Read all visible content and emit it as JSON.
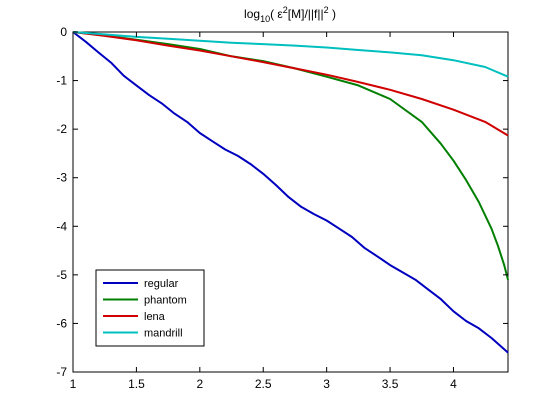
{
  "chart_data": {
    "type": "line",
    "title": {
      "prefix": "log",
      "subscript": "10",
      "body": "( ε",
      "sup1": "2",
      "middle": "[M]/||f||",
      "sup2": "2",
      "suffix": " )"
    },
    "xlabel": "",
    "ylabel": "",
    "xlim": [
      1,
      4.43
    ],
    "ylim": [
      -7,
      0
    ],
    "xticks": [
      1,
      1.5,
      2,
      2.5,
      3,
      3.5,
      4
    ],
    "xtick_labels": [
      "1",
      "1.5",
      "2",
      "2.5",
      "3",
      "3.5",
      "4"
    ],
    "yticks": [
      0,
      -1,
      -2,
      -3,
      -4,
      -5,
      -6,
      -7
    ],
    "ytick_labels": [
      "0",
      "-1",
      "-2",
      "-3",
      "-4",
      "-5",
      "-6",
      "-7"
    ],
    "grid": false,
    "legend_position": "bottom-left",
    "series": [
      {
        "name": "regular",
        "color": "#0000bf",
        "x": [
          1.0,
          1.1,
          1.2,
          1.3,
          1.4,
          1.5,
          1.6,
          1.7,
          1.8,
          1.9,
          2.0,
          2.1,
          2.2,
          2.3,
          2.4,
          2.5,
          2.6,
          2.7,
          2.8,
          2.9,
          3.0,
          3.1,
          3.2,
          3.3,
          3.4,
          3.5,
          3.6,
          3.7,
          3.8,
          3.9,
          4.0,
          4.1,
          4.2,
          4.3,
          4.43
        ],
        "y": [
          0.0,
          -0.2,
          -0.42,
          -0.63,
          -0.9,
          -1.1,
          -1.3,
          -1.47,
          -1.68,
          -1.85,
          -2.08,
          -2.25,
          -2.42,
          -2.55,
          -2.72,
          -2.92,
          -3.15,
          -3.4,
          -3.6,
          -3.75,
          -3.88,
          -4.05,
          -4.22,
          -4.45,
          -4.62,
          -4.8,
          -4.95,
          -5.1,
          -5.3,
          -5.5,
          -5.75,
          -5.95,
          -6.1,
          -6.3,
          -6.6
        ]
      },
      {
        "name": "phantom",
        "color": "#007f00",
        "x": [
          1.0,
          1.25,
          1.5,
          1.75,
          2.0,
          2.25,
          2.5,
          2.75,
          3.0,
          3.25,
          3.5,
          3.75,
          3.9,
          4.0,
          4.1,
          4.2,
          4.3,
          4.35,
          4.4,
          4.43
        ],
        "y": [
          0.0,
          -0.07,
          -0.16,
          -0.25,
          -0.35,
          -0.5,
          -0.6,
          -0.75,
          -0.92,
          -1.1,
          -1.38,
          -1.85,
          -2.3,
          -2.65,
          -3.05,
          -3.5,
          -4.05,
          -4.4,
          -4.8,
          -5.1
        ]
      },
      {
        "name": "lena",
        "color": "#d00000",
        "x": [
          1.0,
          1.25,
          1.5,
          1.75,
          2.0,
          2.25,
          2.5,
          2.75,
          3.0,
          3.25,
          3.5,
          3.75,
          4.0,
          4.25,
          4.43
        ],
        "y": [
          0.0,
          -0.08,
          -0.17,
          -0.28,
          -0.38,
          -0.5,
          -0.62,
          -0.75,
          -0.88,
          -1.03,
          -1.19,
          -1.38,
          -1.6,
          -1.85,
          -2.13
        ]
      },
      {
        "name": "mandrill",
        "color": "#00bfbf",
        "x": [
          1.0,
          1.25,
          1.5,
          1.75,
          2.0,
          2.25,
          2.5,
          2.75,
          3.0,
          3.25,
          3.5,
          3.75,
          4.0,
          4.25,
          4.43
        ],
        "y": [
          0.0,
          -0.05,
          -0.1,
          -0.14,
          -0.18,
          -0.22,
          -0.25,
          -0.28,
          -0.32,
          -0.37,
          -0.42,
          -0.48,
          -0.58,
          -0.72,
          -0.92
        ]
      }
    ]
  }
}
